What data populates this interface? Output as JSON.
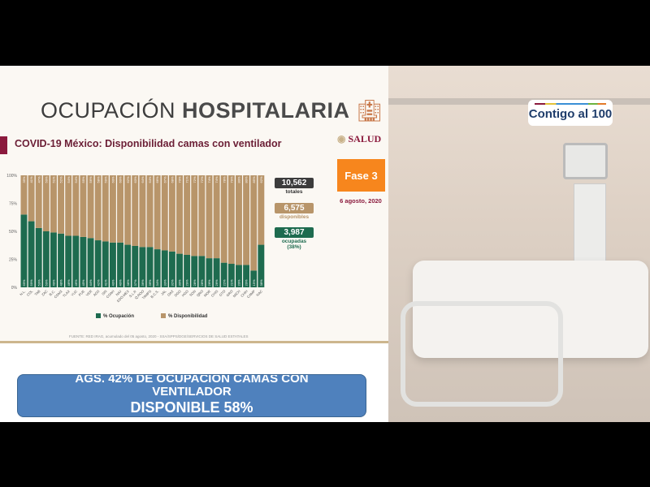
{
  "slide": {
    "title_light": "OCUPACIÓN",
    "title_bold": "HOSPITALARIA",
    "subtitle": "COVID-19 México: Disponibilidad camas con ventilador",
    "logo": "SALUD",
    "phase": "Fase 3",
    "date": "6 agosto, 2020",
    "stats": {
      "total_value": "10,562",
      "total_label": "totales",
      "available_value": "6,575",
      "available_label": "disponibles",
      "occupied_value": "3,987",
      "occupied_label": "ocupadas",
      "occupied_pct": "(38%)"
    },
    "footer": "FUENTE: RED IRAG, acumulado del 05 agosto, 2020 - SSA/SPPS/DGE/SERVICIOS DE SALUD ESTATALES"
  },
  "banner": {
    "line1": "AGS. 42% DE OCUPACION CAMAS CON",
    "line2": "VENTILADOR",
    "line3": "DISPONIBLE 58%"
  },
  "broadcast": {
    "logo": "Contigo al 100"
  },
  "colors": {
    "occupied": "#1e6b4f",
    "available": "#b8956a",
    "phase": "#f7861d",
    "banner": "#4f81bd",
    "accent": "#8b1a3d"
  },
  "chart_data": {
    "type": "bar",
    "stacked": true,
    "categories": [
      "N.L.",
      "COL",
      "TAB",
      "ZAC",
      "B.C.",
      "CDMX",
      "TLAX",
      "YUC",
      "PUE",
      "VER",
      "AGS",
      "SIN",
      "COAH",
      "NAY",
      "EDO.MEX",
      "S.L.P.",
      "Q.ROO",
      "TAMPS",
      "B.C.S.",
      "JAL",
      "OAX",
      "DGO",
      "HGO",
      "SON",
      "QRO",
      "MOR",
      "CHIS",
      "GTO",
      "GRO",
      "MICH",
      "CHIH",
      "CAMP",
      "NAC"
    ],
    "series": [
      {
        "name": "% Ocupación",
        "values": [
          65,
          59,
          53,
          50,
          49,
          48,
          46,
          46,
          45,
          44,
          42,
          41,
          40,
          40,
          38,
          37,
          36,
          36,
          34,
          33,
          32,
          30,
          29,
          28,
          28,
          26,
          26,
          22,
          21,
          20,
          20,
          15,
          38
        ]
      },
      {
        "name": "% Disponibilidad",
        "values": [
          35,
          41,
          47,
          50,
          51,
          52,
          54,
          54,
          55,
          56,
          58,
          59,
          60,
          60,
          62,
          63,
          64,
          64,
          66,
          67,
          68,
          70,
          71,
          72,
          72,
          74,
          74,
          78,
          79,
          80,
          80,
          85,
          62
        ]
      }
    ],
    "yticks": [
      "0%",
      "25%",
      "50%",
      "75%",
      "100%"
    ],
    "ylim": [
      0,
      100
    ],
    "legend": "bottom",
    "grid": false
  }
}
